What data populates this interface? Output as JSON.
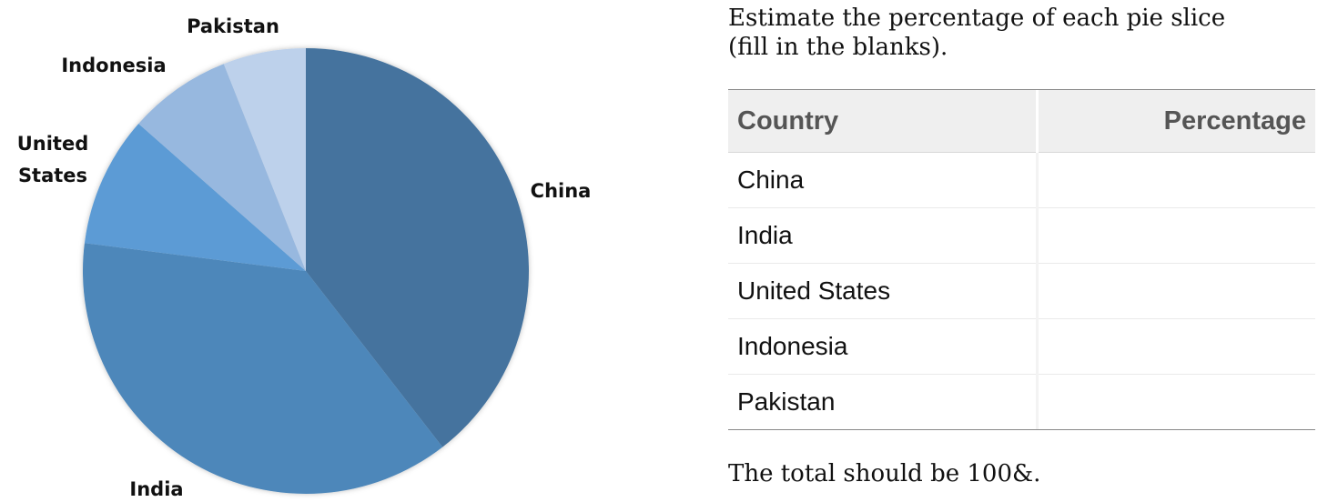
{
  "chart_data": {
    "type": "pie",
    "categories": [
      "China",
      "India",
      "United States",
      "Indonesia",
      "Pakistan"
    ],
    "values": [
      39.5,
      37.5,
      9.5,
      7.5,
      6
    ],
    "colors": [
      "#44739e",
      "#4e87ba",
      "#5b9bd5",
      "#97b8df",
      "#bdd1eb"
    ],
    "labels": [
      {
        "lines": [
          "China"
        ]
      },
      {
        "lines": [
          "India"
        ]
      },
      {
        "lines": [
          "United",
          "States"
        ]
      },
      {
        "lines": [
          "Indonesia"
        ]
      },
      {
        "lines": [
          "Pakistan"
        ]
      }
    ],
    "start": "12 o'clock",
    "direction": "clockwise"
  },
  "instructions": {
    "line1": "Estimate the percentage of each pie slice",
    "line2": "(fill in the blanks)."
  },
  "table": {
    "headers": {
      "country": "Country",
      "percentage": "Percentage"
    },
    "rows": [
      {
        "country": "China",
        "percentage": ""
      },
      {
        "country": "India",
        "percentage": ""
      },
      {
        "country": "United States",
        "percentage": ""
      },
      {
        "country": "Indonesia",
        "percentage": ""
      },
      {
        "country": "Pakistan",
        "percentage": ""
      }
    ]
  },
  "footer": {
    "note": "The total should be 100&."
  }
}
